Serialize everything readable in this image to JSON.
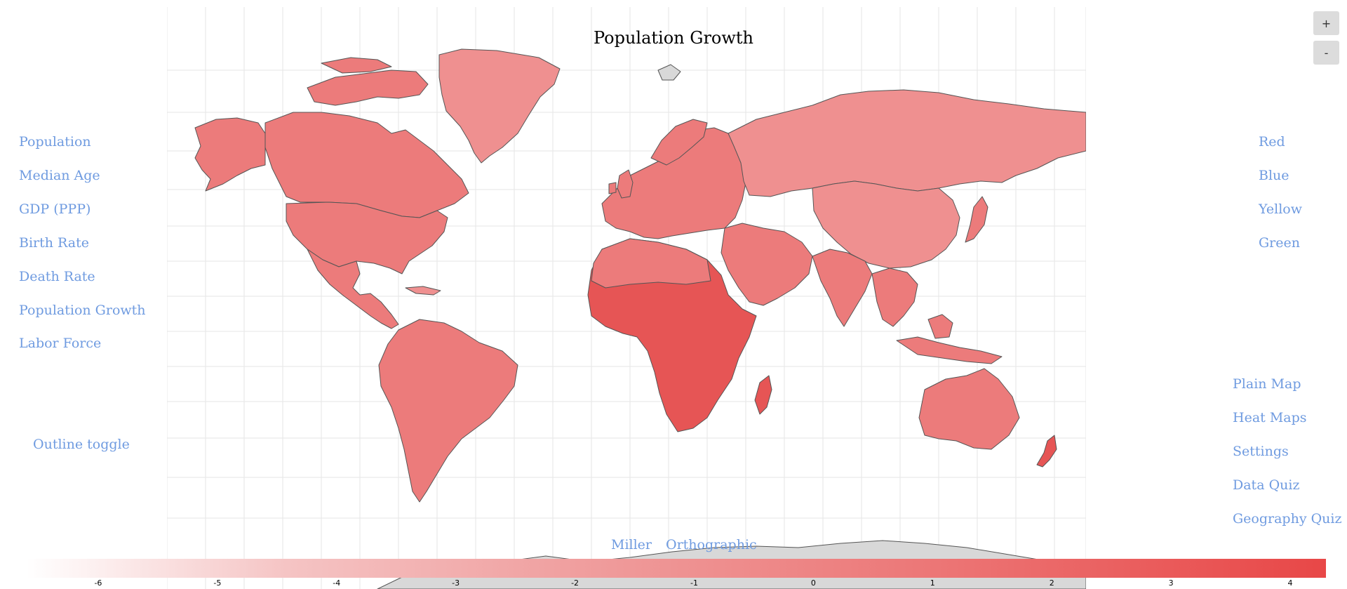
{
  "title": "Population Growth",
  "zoom": {
    "in_label": "+",
    "out_label": "-"
  },
  "data_layers": [
    "Population",
    "Median Age",
    "GDP (PPP)",
    "Birth Rate",
    "Death Rate",
    "Population Growth",
    "Labor Force"
  ],
  "outline_toggle": "Outline toggle",
  "color_schemes": [
    "Red",
    "Blue",
    "Yellow",
    "Green"
  ],
  "modes": [
    "Plain Map",
    "Heat Maps",
    "Settings",
    "Data Quiz",
    "Geography Quiz"
  ],
  "projections": [
    "Miller",
    "Orthographic"
  ],
  "legend": {
    "ticks": [
      "-6",
      "-5",
      "-4",
      "-3",
      "-2",
      "-1",
      "0",
      "1",
      "2",
      "3",
      "4"
    ],
    "min": -6.6,
    "max": 4.3,
    "color_low": "#ffffff",
    "color_high": "#e84747"
  },
  "colors": {
    "link": "#6f9be0",
    "no_data": "#d8d8d8",
    "country_light": "#ef9090",
    "country_mid": "#ec7b7b",
    "country_dark": "#e65555",
    "border": "#555555",
    "grid": "#e6e6e6"
  }
}
